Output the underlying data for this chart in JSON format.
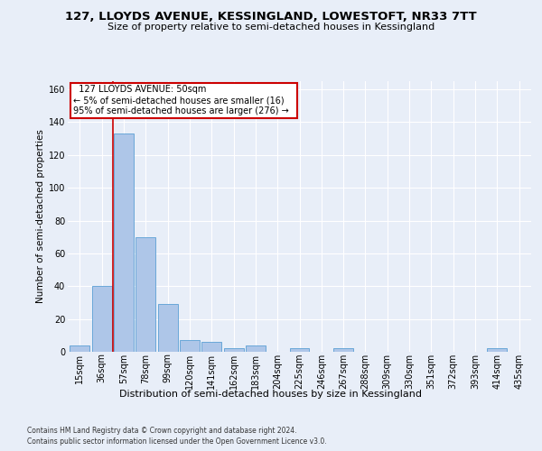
{
  "title": "127, LLOYDS AVENUE, KESSINGLAND, LOWESTOFT, NR33 7TT",
  "subtitle": "Size of property relative to semi-detached houses in Kessingland",
  "xlabel": "Distribution of semi-detached houses by size in Kessingland",
  "ylabel": "Number of semi-detached properties",
  "footer1": "Contains HM Land Registry data © Crown copyright and database right 2024.",
  "footer2": "Contains public sector information licensed under the Open Government Licence v3.0.",
  "annotation_line1": "127 LLOYDS AVENUE: 50sqm",
  "annotation_line2": "← 5% of semi-detached houses are smaller (16)",
  "annotation_line3": "95% of semi-detached houses are larger (276) →",
  "bar_categories": [
    "15sqm",
    "36sqm",
    "57sqm",
    "78sqm",
    "99sqm",
    "120sqm",
    "141sqm",
    "162sqm",
    "183sqm",
    "204sqm",
    "225sqm",
    "246sqm",
    "267sqm",
    "288sqm",
    "309sqm",
    "330sqm",
    "351sqm",
    "372sqm",
    "393sqm",
    "414sqm",
    "435sqm"
  ],
  "bar_values": [
    4,
    40,
    133,
    70,
    29,
    7,
    6,
    2,
    4,
    0,
    2,
    0,
    2,
    0,
    0,
    0,
    0,
    0,
    0,
    2,
    0
  ],
  "bar_color": "#aec6e8",
  "bar_edge_color": "#5a9fd4",
  "red_line_x": 1.5,
  "ylim": [
    0,
    165
  ],
  "yticks": [
    0,
    20,
    40,
    60,
    80,
    100,
    120,
    140,
    160
  ],
  "background_color": "#e8eef8",
  "grid_color": "#ffffff",
  "annotation_box_facecolor": "#ffffff",
  "annotation_box_edgecolor": "#cc0000",
  "red_line_color": "#cc0000",
  "title_fontsize": 9.5,
  "subtitle_fontsize": 8,
  "ylabel_fontsize": 7.5,
  "xlabel_fontsize": 8,
  "tick_fontsize": 7,
  "footer_fontsize": 5.5,
  "annotation_fontsize": 7
}
